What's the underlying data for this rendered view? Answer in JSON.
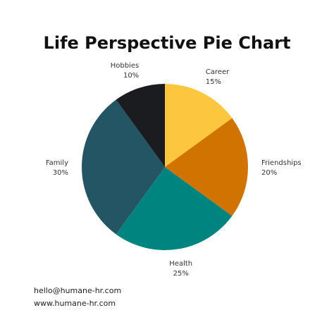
{
  "chart_data": {
    "type": "pie",
    "title": "Life Perspective Pie Chart",
    "slices": [
      {
        "label": "Career",
        "percent_label": "15%",
        "value": 15,
        "color": "#fcc73f"
      },
      {
        "label": "Friendships",
        "percent_label": "20%",
        "value": 20,
        "color": "#d07300"
      },
      {
        "label": "Health",
        "percent_label": "25%",
        "value": 25,
        "color": "#00847f"
      },
      {
        "label": "Family",
        "percent_label": "30%",
        "value": 30,
        "color": "#245564"
      },
      {
        "label": "Hobbies",
        "percent_label": "10%",
        "value": 10,
        "color": "#1b1c1f"
      }
    ]
  },
  "footer": {
    "email": "hello@humane-hr.com",
    "website": "www.humane-hr.com"
  }
}
